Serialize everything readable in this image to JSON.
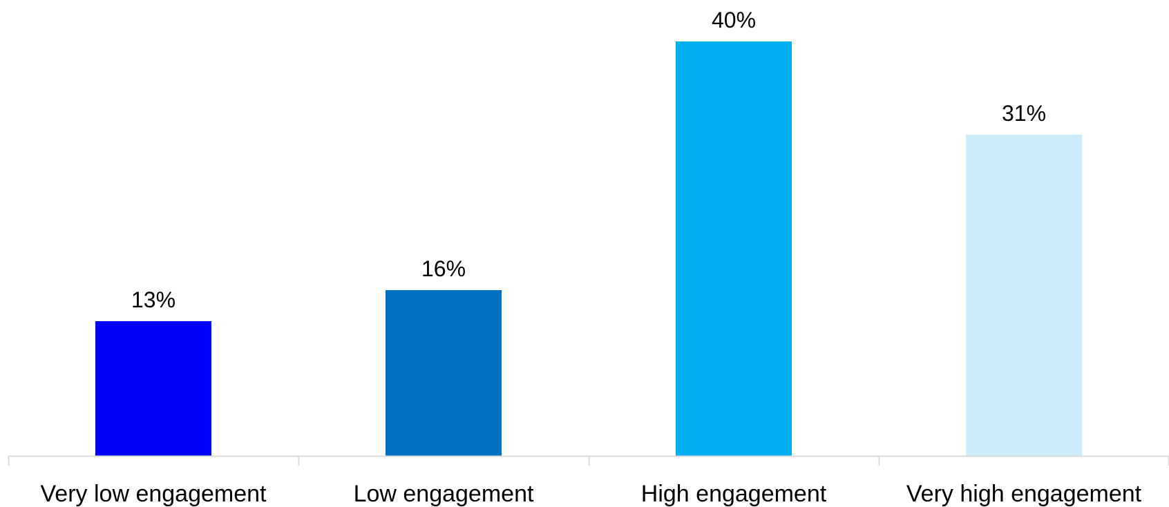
{
  "chart_data": {
    "type": "bar",
    "title": "",
    "xlabel": "",
    "ylabel": "",
    "categories": [
      "Very low engagement",
      "Low engagement",
      "High engagement",
      "Very high engagement"
    ],
    "values": [
      13,
      16,
      40,
      31
    ],
    "value_labels": [
      "13%",
      "16%",
      "40%",
      "31%"
    ],
    "colors": [
      "#0000FF",
      "#0070C0",
      "#00B0F0",
      "#CCECFC"
    ],
    "ylim": [
      0,
      40
    ],
    "grid": false,
    "legend": "none",
    "axis_color": "#D9D9D9"
  }
}
